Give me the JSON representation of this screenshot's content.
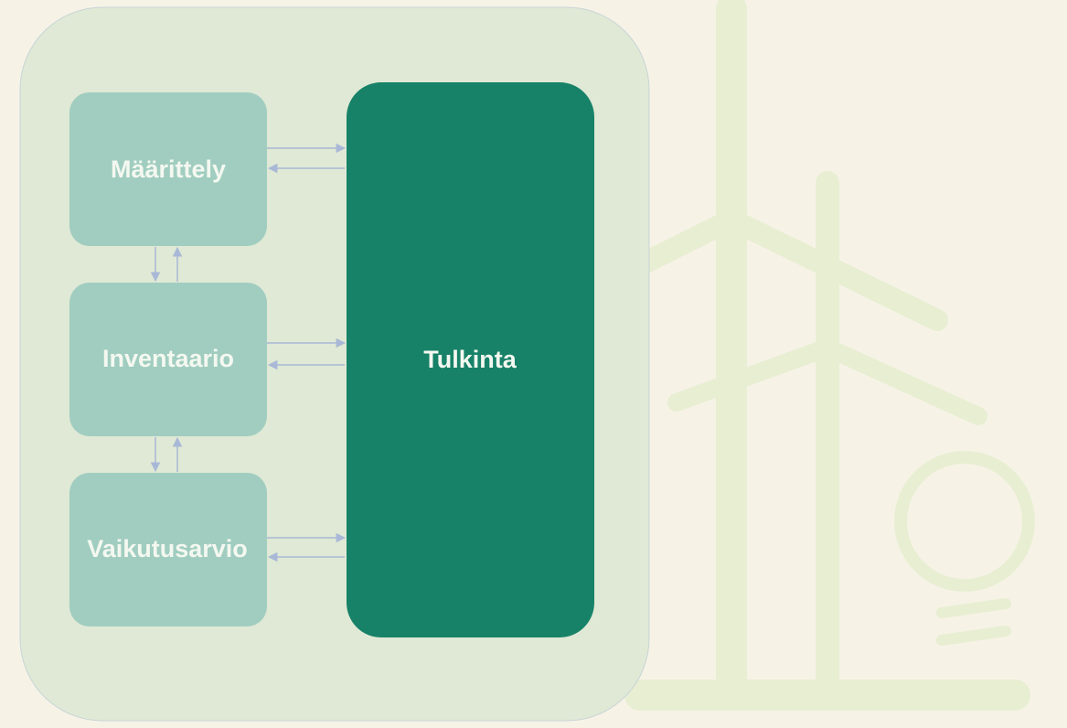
{
  "nodes": [
    {
      "label": "Määrittely"
    },
    {
      "label": "Inventaario"
    },
    {
      "label": "Vaikutusarvio"
    },
    {
      "label": "Tulkinta"
    }
  ]
}
